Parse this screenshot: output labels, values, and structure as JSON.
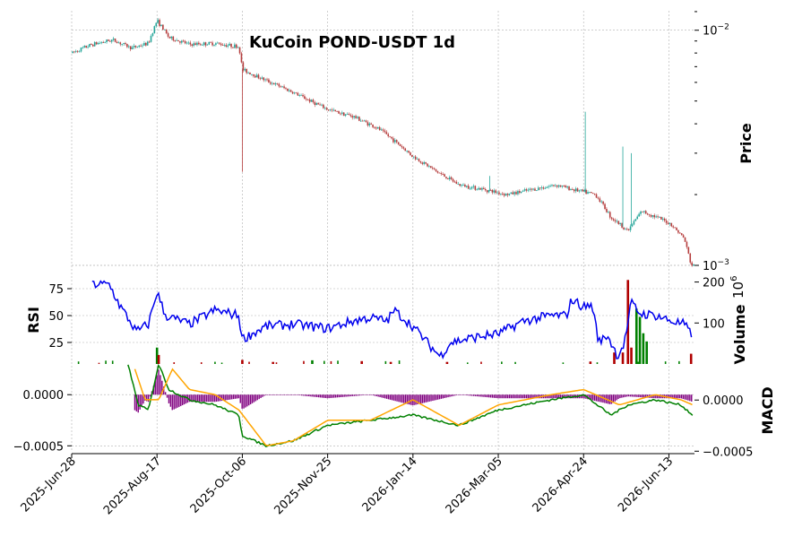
{
  "chart_data": {
    "type": "candlestick",
    "title": "KuCoin POND-USDT 1d",
    "x_tick_labels": [
      "2025-Jun-28",
      "2025-Aug-17",
      "2025-Oct-06",
      "2025-Nov-25",
      "2026-Jan-14",
      "2026-Mar-05",
      "2026-Apr-24",
      "2026-Jun-13"
    ],
    "x_range": [
      "2025-Jun-28",
      "2026-Jun-28"
    ],
    "price_panel": {
      "ylabel": "Price",
      "scale": "log",
      "ylim": [
        0.001,
        0.0121
      ],
      "tick_labels": [
        {
          "value": 0.01,
          "base": "10",
          "exp": "−2"
        },
        {
          "value": 0.001,
          "base": "10",
          "exp": "−3"
        }
      ],
      "close_keypoints": [
        [
          "2025-06-28",
          0.008
        ],
        [
          "2025-07-10",
          0.0087
        ],
        [
          "2025-07-22",
          0.0091
        ],
        [
          "2025-08-02",
          0.0084
        ],
        [
          "2025-08-12",
          0.0088
        ],
        [
          "2025-08-17",
          0.011
        ],
        [
          "2025-08-24",
          0.0093
        ],
        [
          "2025-09-05",
          0.0087
        ],
        [
          "2025-09-20",
          0.0088
        ],
        [
          "2025-10-04",
          0.0085
        ],
        [
          "2025-10-06",
          0.0068
        ],
        [
          "2025-10-18",
          0.0062
        ],
        [
          "2025-11-01",
          0.0056
        ],
        [
          "2025-11-15",
          0.005
        ],
        [
          "2025-11-25",
          0.0046
        ],
        [
          "2025-12-10",
          0.0043
        ],
        [
          "2025-12-25",
          0.0038
        ],
        [
          "2026-01-05",
          0.0033
        ],
        [
          "2026-01-14",
          0.0029
        ],
        [
          "2026-01-28",
          0.0025
        ],
        [
          "2026-02-10",
          0.0022
        ],
        [
          "2026-02-25",
          0.0021
        ],
        [
          "2026-03-10",
          0.002
        ],
        [
          "2026-03-25",
          0.0021
        ],
        [
          "2026-04-08",
          0.0022
        ],
        [
          "2026-04-18",
          0.0021
        ],
        [
          "2026-05-01",
          0.002
        ],
        [
          "2026-05-10",
          0.0016
        ],
        [
          "2026-05-20",
          0.0014
        ],
        [
          "2026-05-28",
          0.0017
        ],
        [
          "2026-06-06",
          0.0016
        ],
        [
          "2026-06-14",
          0.0015
        ],
        [
          "2026-06-22",
          0.0013
        ],
        [
          "2026-06-26",
          0.001
        ]
      ],
      "spikes": [
        {
          "date": "2025-10-06",
          "low": 0.0025
        },
        {
          "date": "2026-02-28",
          "high": 0.0024
        },
        {
          "date": "2026-04-25",
          "high": 0.0045
        },
        {
          "date": "2026-05-17",
          "high": 0.0032
        },
        {
          "date": "2026-05-22",
          "high": 0.003
        }
      ],
      "up_color": "#26a69a",
      "down_color": "#b53d3d"
    },
    "rsi_panel": {
      "ylabel": "RSI",
      "ylim": [
        5,
        85
      ],
      "yticks": [
        25,
        50,
        75
      ],
      "color": "#0000ee",
      "keypoints": [
        [
          "2025-07-10",
          79
        ],
        [
          "2025-07-20",
          79
        ],
        [
          "2025-07-26",
          60
        ],
        [
          "2025-08-05",
          35
        ],
        [
          "2025-08-12",
          42
        ],
        [
          "2025-08-17",
          72
        ],
        [
          "2025-08-22",
          50
        ],
        [
          "2025-09-05",
          42
        ],
        [
          "2025-09-20",
          55
        ],
        [
          "2025-10-04",
          50
        ],
        [
          "2025-10-06",
          28
        ],
        [
          "2025-10-20",
          40
        ],
        [
          "2025-11-05",
          42
        ],
        [
          "2025-11-25",
          38
        ],
        [
          "2025-12-10",
          45
        ],
        [
          "2025-12-20",
          48
        ],
        [
          "2025-12-30",
          45
        ],
        [
          "2026-01-03",
          55
        ],
        [
          "2026-01-14",
          40
        ],
        [
          "2026-01-24",
          22
        ],
        [
          "2026-01-30",
          12
        ],
        [
          "2026-02-05",
          25
        ],
        [
          "2026-02-20",
          30
        ],
        [
          "2026-03-05",
          33
        ],
        [
          "2026-03-20",
          45
        ],
        [
          "2026-04-05",
          50
        ],
        [
          "2026-04-14",
          50
        ],
        [
          "2026-04-17",
          65
        ],
        [
          "2026-04-24",
          58
        ],
        [
          "2026-04-29",
          60
        ],
        [
          "2026-05-03",
          25
        ],
        [
          "2026-05-08",
          32
        ],
        [
          "2026-05-14",
          12
        ],
        [
          "2026-05-18",
          25
        ],
        [
          "2026-05-22",
          62
        ],
        [
          "2026-05-27",
          52
        ],
        [
          "2026-06-06",
          50
        ],
        [
          "2026-06-14",
          45
        ],
        [
          "2026-06-22",
          42
        ],
        [
          "2026-06-27",
          30
        ]
      ]
    },
    "volume_panel": {
      "ylabel": "Volume",
      "multiplier_label": {
        "base": "10",
        "exp": "6"
      },
      "ylim": [
        0,
        210
      ],
      "yticks": [
        100,
        200
      ],
      "bars": [
        [
          "2025-08-17",
          40,
          "#008000"
        ],
        [
          "2025-08-18",
          22,
          "#b00000"
        ],
        [
          "2025-10-06",
          10,
          "#b00000"
        ],
        [
          "2025-10-24",
          5,
          "#b00000"
        ],
        [
          "2025-11-16",
          9,
          "#008000"
        ],
        [
          "2025-12-15",
          7,
          "#b00000"
        ],
        [
          "2026-01-01",
          5,
          "#b00000"
        ],
        [
          "2026-02-03",
          5,
          "#b00000"
        ],
        [
          "2026-04-28",
          6,
          "#b00000"
        ],
        [
          "2026-05-12",
          28,
          "#b00000"
        ],
        [
          "2026-05-17",
          28,
          "#b00000"
        ],
        [
          "2026-05-20",
          205,
          "#b00000"
        ],
        [
          "2026-05-22",
          40,
          "#b00000"
        ],
        [
          "2026-05-25",
          135,
          "#008000"
        ],
        [
          "2026-05-27",
          115,
          "#008000"
        ],
        [
          "2026-05-29",
          75,
          "#008000"
        ],
        [
          "2026-05-31",
          55,
          "#008000"
        ],
        [
          "2026-06-26",
          25,
          "#b00000"
        ]
      ]
    },
    "macd_panel": {
      "ylabel": "MACD",
      "ylim": [
        -0.00055,
        0.0003
      ],
      "left_ticks": [
        {
          "value": 0,
          "label": "0.0000"
        },
        {
          "value": -0.0005,
          "label": "−0.0005"
        }
      ],
      "right_ticks": [
        {
          "value": 0,
          "label": "0.0000"
        },
        {
          "value": -0.0005,
          "label": "−0.0005"
        }
      ],
      "macd_color": "#008000",
      "signal_color": "#ffa500",
      "hist_color": "#800080",
      "macd_keypoints": [
        [
          "2025-07-31",
          0.0003
        ],
        [
          "2025-08-06",
          -0.0001
        ],
        [
          "2025-08-12",
          -0.00015
        ],
        [
          "2025-08-18",
          0.0003
        ],
        [
          "2025-08-24",
          5e-05
        ],
        [
          "2025-09-05",
          -5e-05
        ],
        [
          "2025-09-20",
          -0.0001
        ],
        [
          "2025-10-04",
          -0.0002
        ],
        [
          "2025-10-06",
          -0.0004
        ],
        [
          "2025-10-20",
          -0.0005
        ],
        [
          "2025-11-05",
          -0.00045
        ],
        [
          "2025-11-25",
          -0.0003
        ],
        [
          "2025-12-20",
          -0.00025
        ],
        [
          "2026-01-14",
          -0.0002
        ],
        [
          "2026-02-10",
          -0.0003
        ],
        [
          "2026-03-05",
          -0.00015
        ],
        [
          "2026-04-05",
          -5e-05
        ],
        [
          "2026-04-24",
          0.0
        ],
        [
          "2026-05-10",
          -0.0002
        ],
        [
          "2026-05-20",
          -0.0001
        ],
        [
          "2026-06-05",
          -5e-05
        ],
        [
          "2026-06-20",
          -0.0001
        ],
        [
          "2026-06-27",
          -0.0002
        ]
      ],
      "signal_keypoints": [
        [
          "2025-08-04",
          0.00025
        ],
        [
          "2025-08-10",
          -5e-05
        ],
        [
          "2025-08-18",
          -5e-05
        ],
        [
          "2025-08-26",
          0.00025
        ],
        [
          "2025-09-05",
          5e-05
        ],
        [
          "2025-09-20",
          0.0
        ],
        [
          "2025-10-04",
          -0.00015
        ],
        [
          "2025-10-20",
          -0.0005
        ],
        [
          "2025-11-05",
          -0.00045
        ],
        [
          "2025-11-25",
          -0.00025
        ],
        [
          "2025-12-20",
          -0.00025
        ],
        [
          "2026-01-14",
          -5e-05
        ],
        [
          "2026-02-10",
          -0.0003
        ],
        [
          "2026-03-05",
          -0.0001
        ],
        [
          "2026-04-05",
          0.0
        ],
        [
          "2026-04-24",
          5e-05
        ],
        [
          "2026-05-15",
          -0.0001
        ],
        [
          "2026-06-05",
          0.0
        ],
        [
          "2026-06-20",
          -5e-05
        ],
        [
          "2026-06-27",
          -0.0001
        ]
      ]
    }
  }
}
